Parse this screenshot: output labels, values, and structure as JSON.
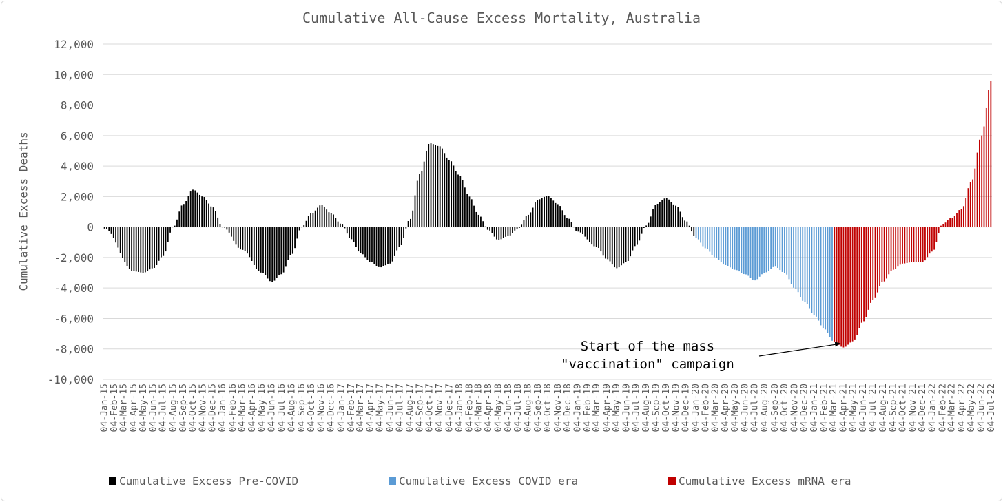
{
  "chart_data": {
    "type": "bar",
    "title": "Cumulative All-Cause Excess Mortality, Australia",
    "ylabel": "Cumulative Excess Deaths",
    "xlabel": "",
    "ylim": [
      -10000,
      12000
    ],
    "yticks": [
      12000,
      10000,
      8000,
      6000,
      4000,
      2000,
      0,
      -2000,
      -4000,
      -6000,
      -8000,
      -10000
    ],
    "ytick_labels": [
      "12,000",
      "10,000",
      "8,000",
      "6,000",
      "4,000",
      "2,000",
      "0",
      "-2,000",
      "-4,000",
      "-6,000",
      "-8,000",
      "-10,000"
    ],
    "grid": true,
    "legend_position": "bottom",
    "x_start": "04-Jan-15",
    "x_end": "04-Jul-22",
    "x_frequency": "weekly",
    "series": [
      {
        "name": "Cumulative Excess Pre-COVID",
        "color": "#000000",
        "start": "04-Jan-15",
        "end": "04-Jan-20"
      },
      {
        "name": "Cumulative Excess COVID era",
        "color": "#5b9bd5",
        "start": "04-Jan-20",
        "end": "04-Mar-21"
      },
      {
        "name": "Cumulative Excess mRNA era",
        "color": "#c00000",
        "start": "04-Mar-21",
        "end": "04-Jul-22"
      }
    ],
    "keypoints": [
      [
        "04-Jan-15",
        -100
      ],
      [
        "04-Apr-15",
        -2900
      ],
      [
        "04-May-15",
        -3000
      ],
      [
        "04-Jun-15",
        -2700
      ],
      [
        "04-Jul-15",
        -1900
      ],
      [
        "04-Aug-15",
        0
      ],
      [
        "04-Sep-15",
        1500
      ],
      [
        "04-Oct-15",
        2450
      ],
      [
        "04-Nov-15",
        2000
      ],
      [
        "04-Dec-15",
        1300
      ],
      [
        "04-Jan-16",
        0
      ],
      [
        "04-Mar-16",
        -1500
      ],
      [
        "04-May-16",
        -3000
      ],
      [
        "04-Jun-16",
        -3600
      ],
      [
        "04-Jul-16",
        -3100
      ],
      [
        "04-Aug-16",
        -1800
      ],
      [
        "04-Sep-16",
        0
      ],
      [
        "04-Oct-16",
        900
      ],
      [
        "04-Nov-16",
        1450
      ],
      [
        "04-Dec-16",
        900
      ],
      [
        "04-Jan-17",
        200
      ],
      [
        "04-Feb-17",
        -800
      ],
      [
        "04-Mar-17",
        -1700
      ],
      [
        "04-Apr-17",
        -2300
      ],
      [
        "04-May-17",
        -2650
      ],
      [
        "04-Jun-17",
        -2400
      ],
      [
        "04-Jul-17",
        -1300
      ],
      [
        "04-Aug-17",
        500
      ],
      [
        "04-Sep-17",
        3500
      ],
      [
        "04-Oct-17",
        5500
      ],
      [
        "04-Nov-17",
        5300
      ],
      [
        "04-Dec-17",
        4400
      ],
      [
        "04-Jan-18",
        3400
      ],
      [
        "04-Feb-18",
        2000
      ],
      [
        "04-Mar-18",
        800
      ],
      [
        "04-Apr-18",
        -200
      ],
      [
        "04-May-18",
        -850
      ],
      [
        "04-Jun-18",
        -600
      ],
      [
        "04-Jul-18",
        -100
      ],
      [
        "04-Aug-18",
        800
      ],
      [
        "04-Sep-18",
        1800
      ],
      [
        "04-Oct-18",
        2050
      ],
      [
        "04-Nov-18",
        1500
      ],
      [
        "04-Dec-18",
        600
      ],
      [
        "04-Jan-19",
        -300
      ],
      [
        "04-Mar-19",
        -1300
      ],
      [
        "04-Apr-19",
        -2100
      ],
      [
        "04-May-19",
        -2700
      ],
      [
        "04-Jun-19",
        -2300
      ],
      [
        "04-Jul-19",
        -1200
      ],
      [
        "04-Aug-19",
        100
      ],
      [
        "04-Sep-19",
        1500
      ],
      [
        "04-Oct-19",
        1900
      ],
      [
        "04-Nov-19",
        1400
      ],
      [
        "04-Dec-19",
        400
      ],
      [
        "04-Jan-20",
        -700
      ],
      [
        "04-Feb-20",
        -1400
      ],
      [
        "04-Mar-20",
        -2000
      ],
      [
        "04-Apr-20",
        -2500
      ],
      [
        "04-May-20",
        -2800
      ],
      [
        "04-Jun-20",
        -3100
      ],
      [
        "04-Jul-20",
        -3500
      ],
      [
        "04-Aug-20",
        -3000
      ],
      [
        "04-Sep-20",
        -2600
      ],
      [
        "04-Oct-20",
        -3000
      ],
      [
        "04-Nov-20",
        -4000
      ],
      [
        "04-Dec-20",
        -4900
      ],
      [
        "04-Jan-21",
        -5800
      ],
      [
        "04-Feb-21",
        -6700
      ],
      [
        "04-Mar-21",
        -7500
      ],
      [
        "04-Apr-21",
        -7900
      ],
      [
        "04-May-21",
        -7500
      ],
      [
        "04-Jun-21",
        -6200
      ],
      [
        "04-Jul-21",
        -4800
      ],
      [
        "04-Aug-21",
        -3600
      ],
      [
        "04-Sep-21",
        -2800
      ],
      [
        "04-Oct-21",
        -2400
      ],
      [
        "04-Nov-21",
        -2300
      ],
      [
        "04-Dec-21",
        -2300
      ],
      [
        "04-Jan-22",
        -1600
      ],
      [
        "04-Feb-22",
        200
      ],
      [
        "04-Mar-22",
        600
      ],
      [
        "04-Apr-22",
        1200
      ],
      [
        "04-May-22",
        3000
      ],
      [
        "04-Jun-22",
        6000
      ],
      [
        "04-Jul-22",
        9600
      ]
    ],
    "x_tick_labels": [
      "04-Jan-15",
      "04-Feb-15",
      "04-Mar-15",
      "04-Apr-15",
      "04-May-15",
      "04-Jun-15",
      "04-Jul-15",
      "04-Aug-15",
      "04-Sep-15",
      "04-Oct-15",
      "04-Nov-15",
      "04-Dec-15",
      "04-Jan-16",
      "04-Feb-16",
      "04-Mar-16",
      "04-Apr-16",
      "04-May-16",
      "04-Jun-16",
      "04-Jul-16",
      "04-Aug-16",
      "04-Sep-16",
      "04-Oct-16",
      "04-Nov-16",
      "04-Dec-16",
      "04-Jan-17",
      "04-Feb-17",
      "04-Mar-17",
      "04-Apr-17",
      "04-May-17",
      "04-Jun-17",
      "04-Jul-17",
      "04-Aug-17",
      "04-Sep-17",
      "04-Oct-17",
      "04-Nov-17",
      "04-Dec-17",
      "04-Jan-18",
      "04-Feb-18",
      "04-Mar-18",
      "04-Apr-18",
      "04-May-18",
      "04-Jun-18",
      "04-Jul-18",
      "04-Aug-18",
      "04-Sep-18",
      "04-Oct-18",
      "04-Nov-18",
      "04-Dec-18",
      "04-Jan-19",
      "04-Feb-19",
      "04-Mar-19",
      "04-Apr-19",
      "04-May-19",
      "04-Jun-19",
      "04-Jul-19",
      "04-Aug-19",
      "04-Sep-19",
      "04-Oct-19",
      "04-Nov-19",
      "04-Dec-19",
      "04-Jan-20",
      "04-Feb-20",
      "04-Mar-20",
      "04-Apr-20",
      "04-May-20",
      "04-Jun-20",
      "04-Jul-20",
      "04-Aug-20",
      "04-Sep-20",
      "04-Oct-20",
      "04-Nov-20",
      "04-Dec-20",
      "04-Jan-21",
      "04-Feb-21",
      "04-Mar-21",
      "04-Apr-21",
      "04-May-21",
      "04-Jun-21",
      "04-Jul-21",
      "04-Aug-21",
      "04-Sep-21",
      "04-Oct-21",
      "04-Nov-21",
      "04-Dec-21",
      "04-Jan-22",
      "04-Feb-22",
      "04-Mar-22",
      "04-Apr-22",
      "04-May-22",
      "04-Jun-22",
      "04-Jul-22"
    ],
    "annotation": {
      "lines": [
        "Start of the mass",
        "\"vaccination\" campaign"
      ],
      "points_to": "04-Apr-21"
    }
  }
}
